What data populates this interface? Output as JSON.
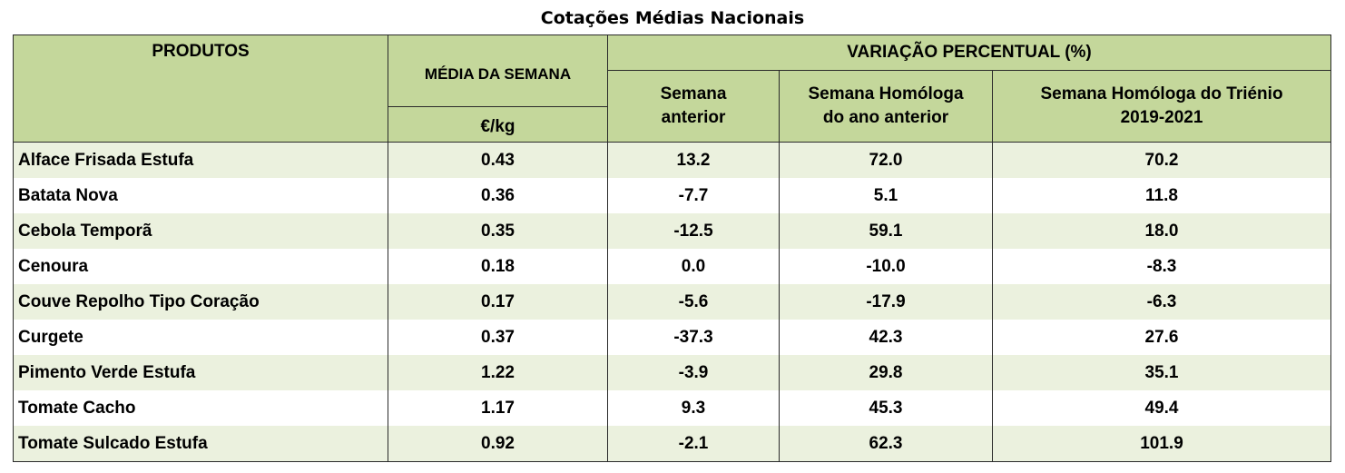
{
  "title": "Cotações Médias Nacionais",
  "headers": {
    "produtos": "PRODUTOS",
    "media_semana": "MÉDIA DA SEMANA",
    "unit": "€/kg",
    "variacao": "VARIAÇÃO PERCENTUAL (%)",
    "semana_anterior_l1": "Semana",
    "semana_anterior_l2": "anterior",
    "homologa_ano_l1": "Semana Homóloga",
    "homologa_ano_l2": "do ano anterior",
    "homologa_trienio_l1": "Semana Homóloga do Triénio",
    "homologa_trienio_l2": "2019-2021"
  },
  "rows": [
    {
      "produto": "Alface Frisada Estufa",
      "media": "0.43",
      "sem_ant": "13.2",
      "hom_ano": "72.0",
      "hom_tri": "70.2"
    },
    {
      "produto": "Batata Nova",
      "media": "0.36",
      "sem_ant": "-7.7",
      "hom_ano": "5.1",
      "hom_tri": "11.8"
    },
    {
      "produto": "Cebola Temporã",
      "media": "0.35",
      "sem_ant": "-12.5",
      "hom_ano": "59.1",
      "hom_tri": "18.0"
    },
    {
      "produto": "Cenoura",
      "media": "0.18",
      "sem_ant": "0.0",
      "hom_ano": "-10.0",
      "hom_tri": "-8.3"
    },
    {
      "produto": "Couve Repolho Tipo Coração",
      "media": "0.17",
      "sem_ant": "-5.6",
      "hom_ano": "-17.9",
      "hom_tri": "-6.3"
    },
    {
      "produto": "Curgete",
      "media": "0.37",
      "sem_ant": "-37.3",
      "hom_ano": "42.3",
      "hom_tri": "27.6"
    },
    {
      "produto": "Pimento Verde Estufa",
      "media": "1.22",
      "sem_ant": "-3.9",
      "hom_ano": "29.8",
      "hom_tri": "35.1"
    },
    {
      "produto": "Tomate Cacho",
      "media": "1.17",
      "sem_ant": "9.3",
      "hom_ano": "45.3",
      "hom_tri": "49.4"
    },
    {
      "produto": "Tomate Sulcado Estufa",
      "media": "0.92",
      "sem_ant": "-2.1",
      "hom_ano": "62.3",
      "hom_tri": "101.9"
    }
  ],
  "colors": {
    "header_bg": "#c4d79b",
    "row_alt_bg": "#ebf1de",
    "row_bg": "#ffffff"
  }
}
